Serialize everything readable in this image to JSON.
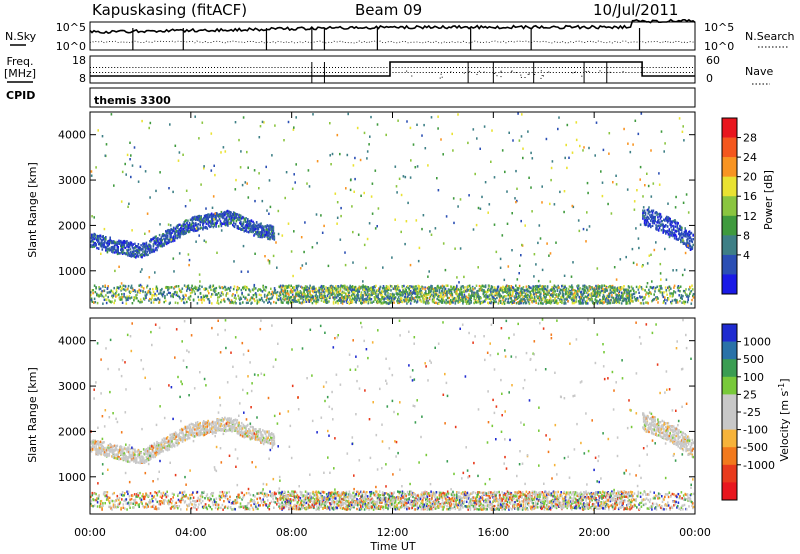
{
  "header": {
    "station": "Kapuskasing (fitACF)",
    "beam": "Beam 09",
    "date": "10/Jul/2011"
  },
  "summary": {
    "nsky_label": "N.Sky",
    "nsearch_label": "N.Search",
    "freq_label_line1": "Freq.",
    "freq_label_line2": "[MHz]",
    "nave_label": "Nave",
    "cpid_label": "CPID",
    "noise_ticks": [
      "10^5",
      "10^0"
    ],
    "freq_ticks": [
      "18",
      "8"
    ],
    "nave_ticks": [
      "60",
      "0"
    ],
    "cpid_value": "themis 3300"
  },
  "chart_data": [
    {
      "type": "heatmap",
      "title": "",
      "xlabel": "Time UT",
      "ylabel": "Slant Range [km]",
      "xlim_hours": [
        0,
        24
      ],
      "x_ticks": [
        "00:00",
        "04:00",
        "08:00",
        "12:00",
        "16:00",
        "20:00",
        "00:00"
      ],
      "ylim_km": [
        180,
        4500
      ],
      "y_ticks": [
        1000,
        2000,
        3000,
        4000
      ],
      "colorbar": {
        "label": "Power [dB]",
        "ticks": [
          "28",
          "24",
          "20",
          "16",
          "12",
          "8",
          "4"
        ],
        "colors": [
          "#e8161e",
          "#f4571e",
          "#f89422",
          "#e9e232",
          "#8ac540",
          "#3f9a3e",
          "#3e7f86",
          "#2b4fb4",
          "#1a1ae6"
        ]
      },
      "features": [
        {
          "kind": "band",
          "t": [
            0.0,
            2.0,
            4.0,
            5.5,
            6.5,
            7.3
          ],
          "r": [
            1700,
            1450,
            2050,
            2200,
            1950,
            1850
          ],
          "width_km": 260,
          "level": "low-mid"
        },
        {
          "kind": "band",
          "t": [
            21.9,
            23.0,
            24.0
          ],
          "r": [
            2250,
            2000,
            1600
          ],
          "width_km": 330,
          "level": "low"
        },
        {
          "kind": "ground-scatter",
          "t_range": [
            0,
            24
          ],
          "r_range": [
            300,
            700
          ],
          "level": "mixed"
        }
      ]
    },
    {
      "type": "heatmap",
      "title": "",
      "xlabel": "Time UT",
      "ylabel": "Slant Range [km]",
      "xlim_hours": [
        0,
        24
      ],
      "x_ticks": [
        "00:00",
        "04:00",
        "08:00",
        "12:00",
        "16:00",
        "20:00",
        "00:00"
      ],
      "ylim_km": [
        180,
        4500
      ],
      "y_ticks": [
        1000,
        2000,
        3000,
        4000
      ],
      "colorbar": {
        "label": "Velocity [m s^-1]",
        "ticks": [
          "1000",
          "500",
          "100",
          "25",
          "-25",
          "-100",
          "-500",
          "-1000"
        ],
        "colors": [
          "#1f2bd0",
          "#2a72a8",
          "#3a9d52",
          "#78c93a",
          "#c8c8c8",
          "#c8c8c8",
          "#f6b33a",
          "#f2791c",
          "#e83a1c",
          "#e8161e"
        ]
      },
      "features": [
        {
          "kind": "band",
          "t": [
            0.0,
            2.0,
            4.0,
            5.5,
            6.5,
            7.3
          ],
          "r": [
            1700,
            1450,
            2050,
            2200,
            1950,
            1850
          ],
          "width_km": 260,
          "level": "near-zero"
        },
        {
          "kind": "band",
          "t": [
            21.9,
            23.0,
            24.0
          ],
          "r": [
            2250,
            2000,
            1600
          ],
          "width_km": 330,
          "level": "near-zero"
        },
        {
          "kind": "ground-scatter",
          "t_range": [
            0,
            24
          ],
          "r_range": [
            300,
            700
          ],
          "level": "mixed"
        }
      ]
    }
  ]
}
